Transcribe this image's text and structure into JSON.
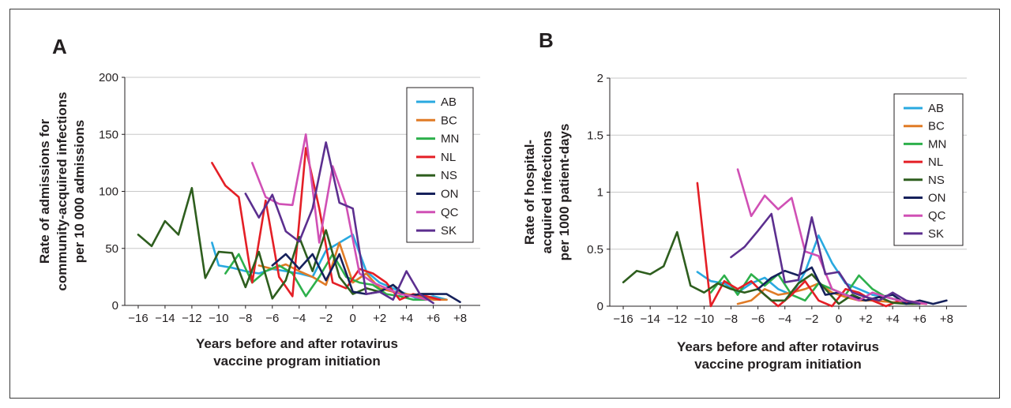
{
  "series_colors": {
    "AB": "#29a9e0",
    "BC": "#e07b26",
    "MN": "#2db04b",
    "NL": "#e41f26",
    "NS": "#2e5e1e",
    "ON": "#16215b",
    "QC": "#d050b5",
    "SK": "#5c2f8f"
  },
  "chart_data": [
    {
      "type": "line",
      "panel": "A",
      "ylabel": "Rate of admissions for community-acquired infections per 10 000 admissions",
      "ylabel_lines": [
        "Rate of admissions for",
        "community-acquired infections",
        "per 10 000 admissions"
      ],
      "xlabel": "Years before and after rotavirus vaccine program initiation",
      "xlabel_lines": [
        "Years before and after rotavirus",
        "vaccine program initiation"
      ],
      "xlim": [
        -17,
        9.5
      ],
      "ylim": [
        0,
        200
      ],
      "yticks": [
        0,
        50,
        100,
        150,
        200
      ],
      "ytick_labels": [
        "0",
        "50",
        "100",
        "150",
        "200"
      ],
      "xticks": [
        -16,
        -14,
        -12,
        -10,
        -8,
        -6,
        -4,
        -2,
        0,
        2,
        4,
        6,
        8
      ],
      "xtick_labels": [
        "−16",
        "−14",
        "−12",
        "−10",
        "−8",
        "−6",
        "−4",
        "−2",
        "0",
        "+2",
        "+4",
        "+6",
        "+8"
      ],
      "grid": true,
      "legend_position": "top-right",
      "series": [
        {
          "name": "AB",
          "x": [
            -10.5,
            -10,
            -9,
            -8,
            -7,
            -6,
            -5,
            -4,
            -3,
            -2,
            -1,
            0,
            1,
            2,
            3,
            4,
            5,
            6,
            7
          ],
          "y": [
            55,
            35,
            33,
            30,
            28,
            32,
            30,
            28,
            25,
            48,
            55,
            62,
            30,
            20,
            15,
            10,
            5,
            8,
            5
          ]
        },
        {
          "name": "BC",
          "x": [
            -7,
            -6,
            -5,
            -4,
            -3,
            -2,
            -1,
            0,
            1,
            2,
            3,
            4,
            5,
            6,
            7
          ],
          "y": [
            35,
            32,
            36,
            30,
            25,
            18,
            55,
            20,
            28,
            15,
            12,
            10,
            8,
            5,
            5
          ]
        },
        {
          "name": "MN",
          "x": [
            -9.5,
            -8.5,
            -7.5,
            -6.5,
            -5.5,
            -4.5,
            -3.5,
            -2.5,
            -1.5,
            -0.5,
            0.5,
            1.5,
            2.5,
            3.5,
            4.5,
            5.5
          ],
          "y": [
            28,
            45,
            20,
            30,
            35,
            28,
            8,
            25,
            45,
            25,
            20,
            18,
            10,
            8,
            5,
            5
          ]
        },
        {
          "name": "NL",
          "x": [
            -10.5,
            -9.5,
            -8.5,
            -7.5,
            -6.5,
            -5.5,
            -4.5,
            -3.5,
            -2.5,
            -1.5,
            -0.5,
            0.5,
            1.5,
            2.5,
            3.5,
            4.5,
            5.5,
            6.5
          ],
          "y": [
            125,
            105,
            95,
            20,
            92,
            25,
            8,
            138,
            85,
            20,
            15,
            32,
            28,
            20,
            5,
            10,
            8,
            5
          ]
        },
        {
          "name": "NS",
          "x": [
            -16,
            -15,
            -14,
            -13,
            -12,
            -11,
            -10,
            -9,
            -8,
            -7,
            -6,
            -5,
            -4,
            -3,
            -2,
            -1,
            0,
            1,
            2,
            3,
            4,
            5,
            6
          ],
          "y": [
            62,
            52,
            74,
            62,
            103,
            24,
            47,
            46,
            16,
            47,
            6,
            22,
            60,
            30,
            66,
            25,
            10,
            15,
            12,
            18,
            8,
            10,
            10
          ]
        },
        {
          "name": "ON",
          "x": [
            -6,
            -5,
            -4,
            -3,
            -2,
            -1,
            0,
            1,
            2,
            3,
            4,
            5,
            6,
            7,
            8
          ],
          "y": [
            35,
            45,
            32,
            45,
            22,
            45,
            12,
            10,
            12,
            18,
            8,
            10,
            10,
            10,
            3
          ]
        },
        {
          "name": "QC",
          "x": [
            -7.5,
            -6.5,
            -5.5,
            -4.5,
            -3.5,
            -2.5,
            -1.5,
            -0.5,
            0.5,
            1.5,
            2.5,
            3.5,
            4.5,
            5.5
          ],
          "y": [
            125,
            95,
            89,
            88,
            150,
            55,
            122,
            88,
            28,
            20,
            15,
            10,
            8,
            5
          ]
        },
        {
          "name": "SK",
          "x": [
            -8,
            -7,
            -6,
            -5,
            -4,
            -3,
            -2,
            -1,
            0,
            1,
            2,
            3,
            4,
            5,
            6
          ],
          "y": [
            98,
            77,
            97,
            65,
            56,
            85,
            143,
            90,
            85,
            10,
            12,
            5,
            30,
            10,
            2
          ]
        }
      ]
    },
    {
      "type": "line",
      "panel": "B",
      "ylabel": "Rate of hospital-acquired infections per 1000 patient-days",
      "ylabel_lines": [
        "Rate of hospital-",
        "acquired infections",
        "per 1000 patient-days"
      ],
      "xlabel": "Years before and after rotavirus vaccine program initiation",
      "xlabel_lines": [
        "Years before and after rotavirus",
        "vaccine program initiation"
      ],
      "xlim": [
        -17,
        9.5
      ],
      "ylim": [
        0,
        2
      ],
      "yticks": [
        0,
        0.5,
        1,
        1.5,
        2
      ],
      "ytick_labels": [
        "0",
        "0.5",
        "1",
        "1.5",
        "2"
      ],
      "xticks": [
        -16,
        -14,
        -12,
        -10,
        -8,
        -6,
        -4,
        -2,
        0,
        2,
        4,
        6,
        8
      ],
      "xtick_labels": [
        "−16",
        "−14",
        "−12",
        "−10",
        "−8",
        "−6",
        "−4",
        "−2",
        "0",
        "+2",
        "+4",
        "+6",
        "+8"
      ],
      "grid": true,
      "legend_position": "top-right",
      "series": [
        {
          "name": "AB",
          "x": [
            -10.5,
            -9.5,
            -8.5,
            -7.5,
            -6.5,
            -5.5,
            -4.5,
            -3.5,
            -2.5,
            -1.5,
            -0.5,
            0.5,
            1.5,
            2.5,
            3.5,
            4.5,
            5.5
          ],
          "y": [
            0.3,
            0.22,
            0.2,
            0.12,
            0.2,
            0.25,
            0.15,
            0.1,
            0.3,
            0.62,
            0.38,
            0.2,
            0.15,
            0.1,
            0.08,
            0.05,
            0.03
          ]
        },
        {
          "name": "BC",
          "x": [
            -7.5,
            -6.5,
            -5.5,
            -4.5,
            -3.5,
            -2.5,
            -1.5,
            -0.5,
            0.5,
            1.5,
            2.5,
            3.5,
            4.5,
            5.5
          ],
          "y": [
            0.02,
            0.05,
            0.15,
            0.1,
            0.12,
            0.15,
            0.2,
            0.12,
            0.08,
            0.05,
            0.05,
            0.04,
            0.03,
            0.02
          ]
        },
        {
          "name": "MN",
          "x": [
            -9.5,
            -8.5,
            -7.5,
            -6.5,
            -5.5,
            -4.5,
            -3.5,
            -2.5,
            -1.5,
            -0.5,
            0.5,
            1.5,
            2.5,
            3.5,
            4.5,
            5.5
          ],
          "y": [
            0.12,
            0.27,
            0.1,
            0.28,
            0.18,
            0.28,
            0.1,
            0.05,
            0.2,
            0.15,
            0.1,
            0.27,
            0.15,
            0.08,
            0.05,
            0.03
          ]
        },
        {
          "name": "NL",
          "x": [
            -10.5,
            -9.5,
            -8.5,
            -7.5,
            -6.5,
            -5.5,
            -4.5,
            -3.5,
            -2.5,
            -1.5,
            -0.5,
            0.5,
            1.5,
            2.5,
            3.5,
            4.5,
            5.5,
            6.5
          ],
          "y": [
            1.08,
            0.0,
            0.22,
            0.15,
            0.22,
            0.1,
            0.0,
            0.1,
            0.22,
            0.05,
            0.0,
            0.15,
            0.12,
            0.05,
            0.0,
            0.05,
            0.03,
            0.02
          ]
        },
        {
          "name": "NS",
          "x": [
            -16,
            -15,
            -14,
            -13,
            -12,
            -11,
            -10,
            -9,
            -8,
            -7,
            -6,
            -5,
            -4,
            -3,
            -2,
            -1,
            0,
            1,
            2,
            3,
            4,
            5,
            6
          ],
          "y": [
            0.21,
            0.31,
            0.28,
            0.35,
            0.65,
            0.18,
            0.12,
            0.2,
            0.15,
            0.12,
            0.15,
            0.05,
            0.05,
            0.2,
            0.28,
            0.15,
            0.02,
            0.1,
            0.05,
            0.08,
            0.03,
            0.02,
            0.02
          ]
        },
        {
          "name": "ON",
          "x": [
            -6,
            -5,
            -4,
            -3,
            -2,
            -1,
            0,
            1,
            2,
            3,
            4,
            5,
            6,
            7,
            8
          ],
          "y": [
            0.15,
            0.25,
            0.31,
            0.27,
            0.34,
            0.1,
            0.12,
            0.08,
            0.05,
            0.08,
            0.1,
            0.02,
            0.05,
            0.02,
            0.05
          ]
        },
        {
          "name": "QC",
          "x": [
            -7.5,
            -6.5,
            -5.5,
            -4.5,
            -3.5,
            -2.5,
            -1.5,
            -0.5,
            0.5,
            1.5,
            2.5,
            3.5,
            4.5,
            5.5,
            6.5
          ],
          "y": [
            1.2,
            0.79,
            0.97,
            0.85,
            0.95,
            0.48,
            0.44,
            0.15,
            0.1,
            0.05,
            0.12,
            0.08,
            0.05,
            0.04,
            0.02
          ]
        },
        {
          "name": "SK",
          "x": [
            -8,
            -7,
            -6,
            -5,
            -4,
            -3,
            -2,
            -1,
            0,
            1,
            2,
            3,
            4,
            5,
            6
          ],
          "y": [
            0.43,
            0.52,
            0.66,
            0.81,
            0.21,
            0.23,
            0.78,
            0.28,
            0.3,
            0.12,
            0.08,
            0.05,
            0.12,
            0.05,
            0.02
          ]
        }
      ]
    }
  ]
}
